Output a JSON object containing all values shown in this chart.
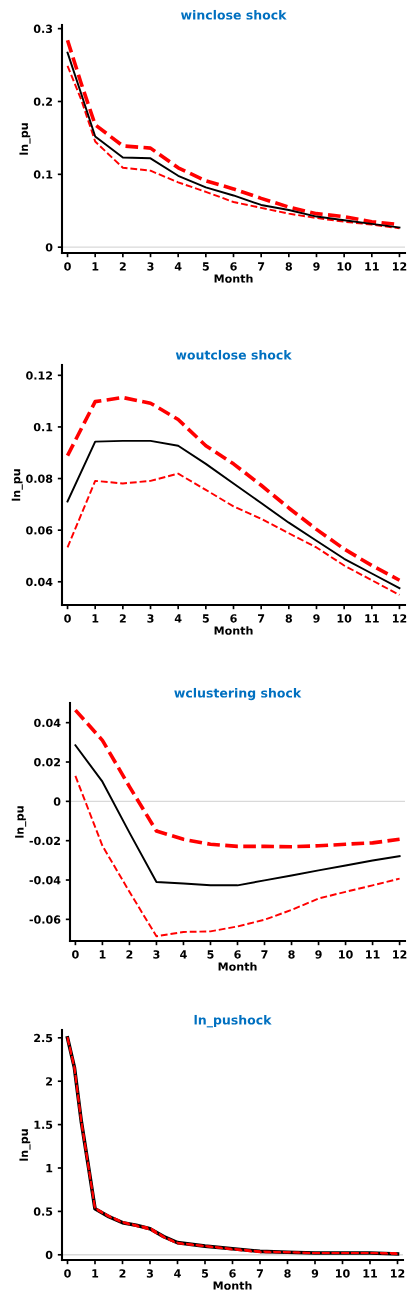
{
  "chart_data": [
    {
      "type": "line",
      "title": "winclose shock",
      "xlabel": "Month",
      "ylabel": "ln_pu",
      "x": [
        0,
        0.5,
        1,
        2,
        3,
        4,
        5,
        6,
        7,
        8,
        9,
        10,
        11,
        12
      ],
      "xlim": [
        -0.2,
        12.2
      ],
      "xticks": [
        0,
        1,
        2,
        3,
        4,
        5,
        6,
        7,
        8,
        9,
        10,
        11,
        12
      ],
      "ylim": [
        -0.008,
        0.305
      ],
      "yticks": [
        0,
        0.1,
        0.2,
        0.3
      ],
      "grid": false,
      "ref_lines": [
        {
          "axis": "y",
          "value": 0,
          "color": "#d9d9d9"
        }
      ],
      "series": [
        {
          "color": "#ff0000",
          "line_style": "dashed",
          "values": [
            0.284,
            0.224,
            0.168,
            0.139,
            0.136,
            0.109,
            0.091,
            0.08,
            0.067,
            0.055,
            0.046,
            0.042,
            0.035,
            0.031
          ]
        },
        {
          "color": "#ff0000",
          "line_style": "dashed",
          "values": [
            0.249,
            0.202,
            0.145,
            0.109,
            0.105,
            0.089,
            0.076,
            0.062,
            0.054,
            0.046,
            0.04,
            0.035,
            0.031,
            0.026
          ]
        },
        {
          "color": "#000000",
          "line_style": "solid",
          "values": [
            0.267,
            0.21,
            0.152,
            0.123,
            0.122,
            0.098,
            0.082,
            0.071,
            0.058,
            0.051,
            0.042,
            0.037,
            0.032,
            0.027
          ]
        }
      ]
    },
    {
      "type": "line",
      "title": "woutclose shock",
      "xlabel": "Month",
      "ylabel": "ln_pu",
      "x": [
        0,
        1,
        2,
        3,
        4,
        5,
        6,
        7,
        8,
        9,
        10,
        11,
        12
      ],
      "xlim": [
        -0.2,
        12.2
      ],
      "xticks": [
        0,
        1,
        2,
        3,
        4,
        5,
        6,
        7,
        8,
        9,
        10,
        11,
        12
      ],
      "ylim": [
        0.031,
        0.124
      ],
      "yticks": [
        0.04,
        0.06,
        0.08,
        0.1,
        0.12
      ],
      "grid": false,
      "series": [
        {
          "color": "#ff0000",
          "line_style": "dashed",
          "values": [
            0.0889,
            0.1098,
            0.1114,
            0.1092,
            0.1029,
            0.0927,
            0.0857,
            0.0774,
            0.0686,
            0.0603,
            0.0527,
            0.0463,
            0.0406
          ]
        },
        {
          "color": "#ff0000",
          "line_style": "dashed",
          "values": [
            0.0533,
            0.0791,
            0.0781,
            0.0791,
            0.0819,
            0.0756,
            0.0692,
            0.0644,
            0.0588,
            0.0533,
            0.0463,
            0.0406,
            0.0349
          ]
        },
        {
          "color": "#000000",
          "line_style": "solid",
          "values": [
            0.0711,
            0.0943,
            0.0946,
            0.0946,
            0.0927,
            0.0857,
            0.0781,
            0.0705,
            0.0629,
            0.0559,
            0.0489,
            0.0432,
            0.0375
          ]
        }
      ]
    },
    {
      "type": "line",
      "title": "wclustering shock",
      "xlabel": "Month",
      "ylabel": "ln_pu",
      "x": [
        0,
        1,
        2,
        3,
        4,
        5,
        6,
        7,
        8,
        9,
        10,
        11,
        12
      ],
      "xlim": [
        -0.2,
        12.2
      ],
      "xticks": [
        0,
        1,
        2,
        3,
        4,
        5,
        6,
        7,
        8,
        9,
        10,
        11,
        12
      ],
      "ylim": [
        -0.071,
        0.05
      ],
      "yticks": [
        -0.06,
        -0.04,
        -0.02,
        0,
        0.02,
        0.04
      ],
      "grid": false,
      "ref_lines": [
        {
          "axis": "y",
          "value": 0,
          "color": "#d9d9d9"
        }
      ],
      "series": [
        {
          "color": "#ff0000",
          "line_style": "dashed",
          "values": [
            0.0464,
            0.031,
            0.0075,
            -0.0151,
            -0.0193,
            -0.0218,
            -0.0229,
            -0.0229,
            -0.0231,
            -0.0226,
            -0.0218,
            -0.0211,
            -0.0193
          ]
        },
        {
          "color": "#ff0000",
          "line_style": "dashed",
          "values": [
            0.0129,
            -0.0226,
            -0.046,
            -0.0686,
            -0.0664,
            -0.0661,
            -0.0636,
            -0.0602,
            -0.0552,
            -0.0494,
            -0.046,
            -0.0427,
            -0.0393
          ]
        },
        {
          "color": "#000000",
          "line_style": "solid",
          "values": [
            0.0285,
            0.01,
            -0.0159,
            -0.041,
            -0.0418,
            -0.0427,
            -0.0427,
            -0.0402,
            -0.0377,
            -0.0351,
            -0.0326,
            -0.0301,
            -0.0279
          ]
        }
      ]
    },
    {
      "type": "line",
      "title": "ln_pushock",
      "xlabel": "Month",
      "ylabel": "ln_pu",
      "x": [
        0,
        0.25,
        0.5,
        0.75,
        1,
        1.5,
        2,
        2.5,
        3,
        3.5,
        4,
        5,
        6,
        7,
        8,
        9,
        10,
        11,
        12
      ],
      "xlim": [
        -0.2,
        12.2
      ],
      "xticks": [
        0,
        1,
        2,
        3,
        4,
        5,
        6,
        7,
        8,
        9,
        10,
        11,
        12
      ],
      "ylim": [
        -0.06,
        2.59
      ],
      "yticks": [
        0,
        0.5,
        1,
        1.5,
        2,
        2.5
      ],
      "grid": false,
      "ref_lines": [
        {
          "axis": "y",
          "value": 0,
          "color": "#d9d9d9"
        }
      ],
      "series": [
        {
          "color": "#000000",
          "line_style": "solid",
          "values": [
            2.5,
            2.16,
            1.54,
            1.04,
            0.53,
            0.44,
            0.37,
            0.34,
            0.3,
            0.21,
            0.14,
            0.1,
            0.07,
            0.04,
            0.03,
            0.02,
            0.02,
            0.02,
            0.01
          ]
        },
        {
          "color": "#ff0000",
          "line_style": "dashed",
          "values": [
            2.51,
            2.17,
            1.55,
            1.05,
            0.54,
            0.45,
            0.38,
            0.34,
            0.31,
            0.21,
            0.14,
            0.1,
            0.07,
            0.04,
            0.03,
            0.02,
            0.02,
            0.02,
            0.02
          ]
        },
        {
          "color": "#ff0000",
          "line_style": "dashed",
          "values": [
            2.49,
            2.15,
            1.53,
            1.03,
            0.53,
            0.44,
            0.37,
            0.33,
            0.29,
            0.2,
            0.13,
            0.1,
            0.06,
            0.03,
            0.03,
            0.02,
            0.02,
            0.02,
            0.01
          ]
        }
      ]
    }
  ]
}
